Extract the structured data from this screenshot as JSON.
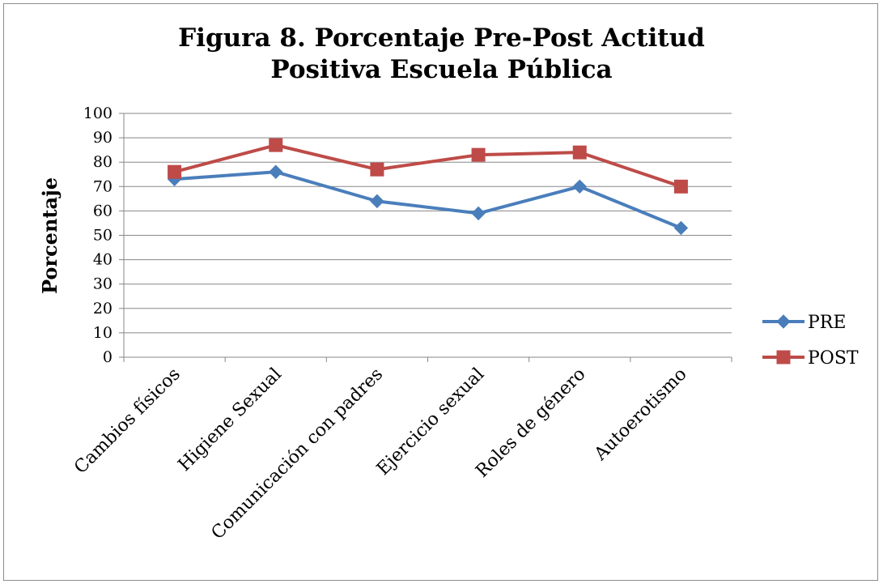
{
  "chart_data": {
    "type": "line",
    "title_lines": [
      "Figura 8. Porcentaje Pre-Post Actitud",
      "Positiva Escuela Pública"
    ],
    "ylabel": "Porcentaje",
    "xlabel": "",
    "ylim": [
      0,
      100
    ],
    "yticks": [
      "0",
      "10",
      "20",
      "30",
      "40",
      "50",
      "60",
      "70",
      "80",
      "90",
      "100"
    ],
    "categories": [
      "Cambios físicos",
      "Higiene Sexual",
      "Comunicación con padres",
      "Ejercicio sexual",
      "Roles de género",
      "Autoerotismo"
    ],
    "series": [
      {
        "name": "PRE",
        "color": "#4a7ebb",
        "marker": "diamond",
        "values": [
          73,
          76,
          64,
          59,
          70,
          53
        ]
      },
      {
        "name": "POST",
        "color": "#be4b48",
        "marker": "square",
        "values": [
          76,
          87,
          77,
          83,
          84,
          70
        ]
      }
    ],
    "grid": true,
    "legend_position": "right"
  }
}
